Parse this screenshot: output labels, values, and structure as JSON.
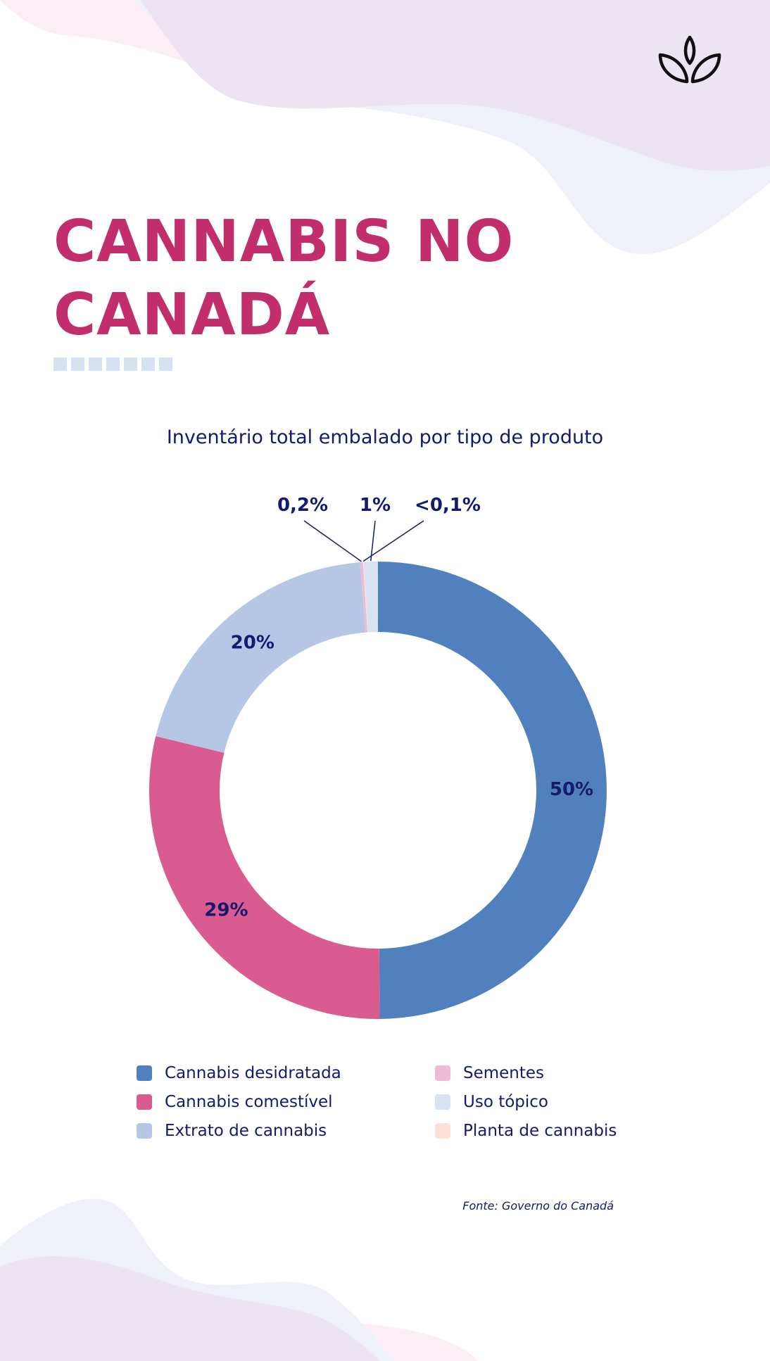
{
  "header": {
    "title_line1": "CANNABIS NO",
    "title_line2": "CANADÁ"
  },
  "decor": {
    "logo_icon": "leaf-sprout-icon",
    "square_count": 7
  },
  "colors": {
    "title": "#c22d6c",
    "text": "#141a6e",
    "wave_lavender": "#ece4f0",
    "wave_blue": "#eef1f8",
    "wave_pink": "#fbeef4"
  },
  "chart_data": {
    "type": "pie",
    "donut": true,
    "title": "Inventário total embalado por tipo de produto",
    "legend_position": "bottom",
    "slices": [
      {
        "name": "Cannabis desidratada",
        "value": 50,
        "label": "50%",
        "color": "#5180be"
      },
      {
        "name": "Cannabis comestível",
        "value": 29,
        "label": "29%",
        "color": "#d95b8f"
      },
      {
        "name": "Extrato de cannabis",
        "value": 20,
        "label": "20%",
        "color": "#b5c7e4"
      },
      {
        "name": "Sementes",
        "value": 0.2,
        "label": "0,2%",
        "color": "#eebbd4"
      },
      {
        "name": "Uso tópico",
        "value": 1,
        "label": "1%",
        "color": "#d9e2f0"
      },
      {
        "name": "Planta de cannabis",
        "value": 0.05,
        "label": "<0,1%",
        "color": "#fde1d9"
      }
    ]
  },
  "footer": {
    "source": "Fonte: Governo do Canadá"
  }
}
